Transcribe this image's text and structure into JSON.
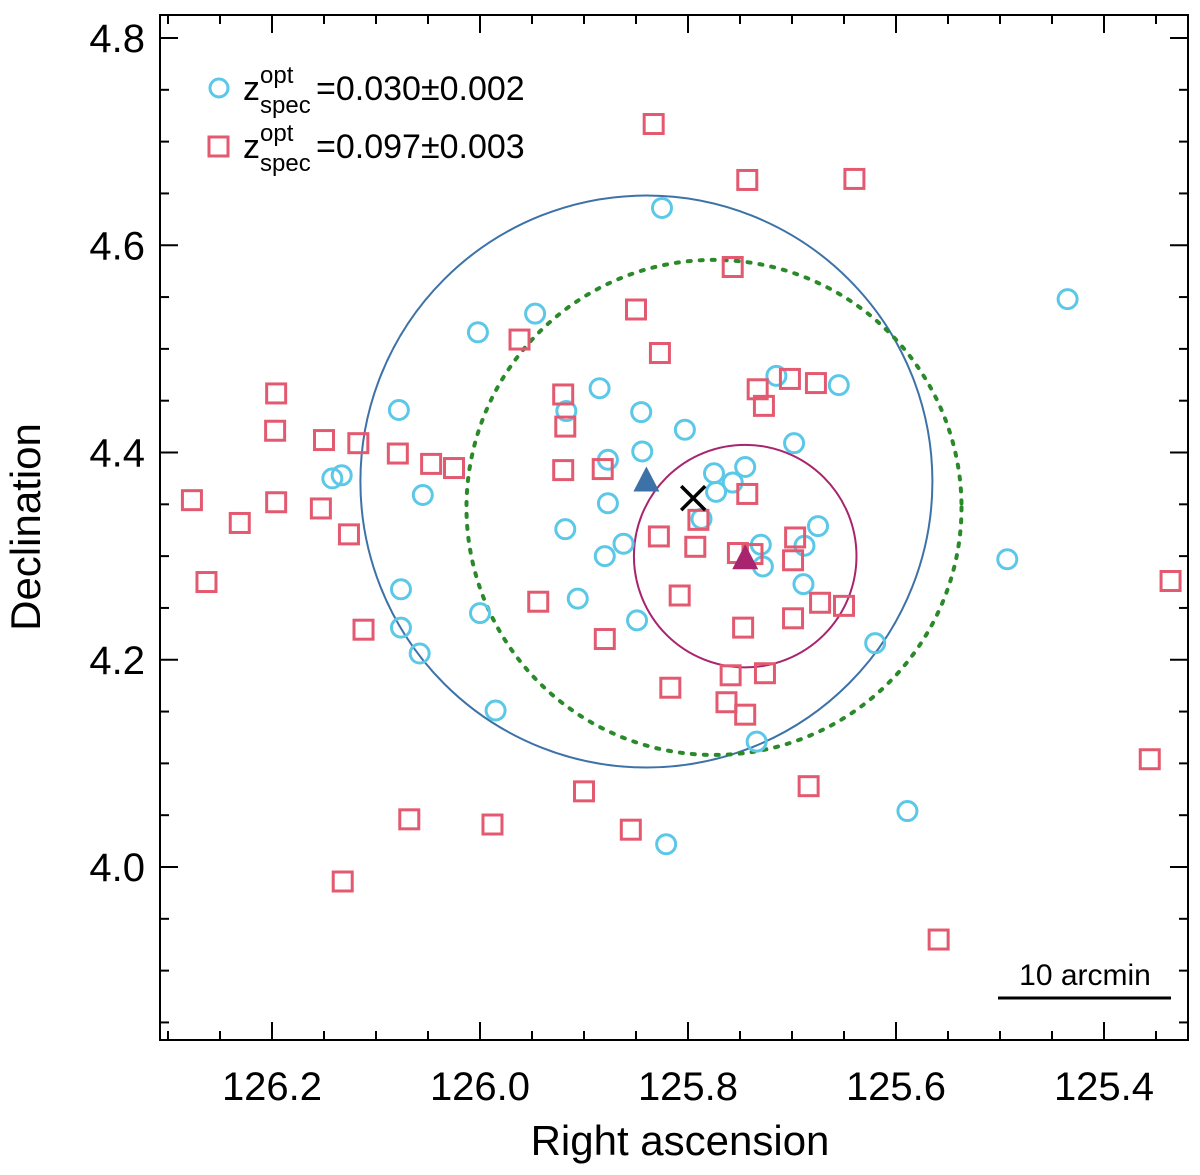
{
  "chart_data": {
    "type": "scatter",
    "xlabel": "Right ascension",
    "ylabel": "Declination",
    "xlim": [
      126.3,
      125.3
    ],
    "ylim": [
      3.86,
      4.83
    ],
    "x_ticks": [
      126.2,
      126.0,
      125.8,
      125.6,
      125.4
    ],
    "y_ticks": [
      4.0,
      4.2,
      4.4,
      4.6,
      4.8
    ],
    "colors": {
      "low_z": "#5bc8e8",
      "high_z": "#e35a70",
      "blue_circle": "#3d72a8",
      "purple_circle": "#a8246e",
      "dotted_circle": "#2a8a2a",
      "center_cross": "#000000"
    },
    "legend": [
      {
        "symbol": "circle",
        "z": "z",
        "sup": "opt",
        "sub": "spec",
        "text": "=0.030±0.002"
      },
      {
        "symbol": "square",
        "z": "z",
        "sup": "opt",
        "sub": "spec",
        "text": "=0.097±0.003"
      }
    ],
    "scale_bar_label": "10 arcmin",
    "series": [
      {
        "name": "z=0.030±0.002",
        "marker": "circle",
        "points": [
          [
            125.825,
            4.636
          ],
          [
            125.435,
            4.548
          ],
          [
            126.002,
            4.516
          ],
          [
            125.947,
            4.534
          ],
          [
            125.715,
            4.474
          ],
          [
            125.655,
            4.465
          ],
          [
            125.885,
            4.462
          ],
          [
            126.078,
            4.441
          ],
          [
            125.917,
            4.44
          ],
          [
            125.845,
            4.439
          ],
          [
            125.803,
            4.422
          ],
          [
            125.698,
            4.409
          ],
          [
            125.844,
            4.401
          ],
          [
            125.877,
            4.393
          ],
          [
            125.745,
            4.386
          ],
          [
            125.775,
            4.38
          ],
          [
            126.133,
            4.378
          ],
          [
            126.142,
            4.375
          ],
          [
            125.757,
            4.371
          ],
          [
            125.773,
            4.362
          ],
          [
            126.055,
            4.359
          ],
          [
            125.877,
            4.351
          ],
          [
            125.787,
            4.336
          ],
          [
            125.918,
            4.326
          ],
          [
            125.675,
            4.329
          ],
          [
            125.862,
            4.312
          ],
          [
            125.73,
            4.311
          ],
          [
            125.688,
            4.31
          ],
          [
            125.88,
            4.3
          ],
          [
            125.728,
            4.29
          ],
          [
            125.689,
            4.273
          ],
          [
            126.076,
            4.268
          ],
          [
            125.906,
            4.259
          ],
          [
            126.0,
            4.245
          ],
          [
            125.849,
            4.238
          ],
          [
            126.076,
            4.231
          ],
          [
            125.62,
            4.216
          ],
          [
            126.058,
            4.206
          ],
          [
            125.985,
            4.151
          ],
          [
            125.734,
            4.121
          ],
          [
            125.493,
            4.297
          ],
          [
            125.589,
            4.054
          ],
          [
            125.821,
            4.022
          ]
        ]
      },
      {
        "name": "z=0.097±0.003",
        "marker": "square",
        "points": [
          [
            125.833,
            4.717
          ],
          [
            125.743,
            4.663
          ],
          [
            125.64,
            4.664
          ],
          [
            125.757,
            4.579
          ],
          [
            125.85,
            4.538
          ],
          [
            125.962,
            4.509
          ],
          [
            125.827,
            4.496
          ],
          [
            125.92,
            4.456
          ],
          [
            125.733,
            4.461
          ],
          [
            125.702,
            4.471
          ],
          [
            125.677,
            4.467
          ],
          [
            125.727,
            4.445
          ],
          [
            125.918,
            4.425
          ],
          [
            126.196,
            4.457
          ],
          [
            126.197,
            4.421
          ],
          [
            126.15,
            4.412
          ],
          [
            126.117,
            4.409
          ],
          [
            126.079,
            4.399
          ],
          [
            126.047,
            4.389
          ],
          [
            126.025,
            4.385
          ],
          [
            125.882,
            4.384
          ],
          [
            125.92,
            4.383
          ],
          [
            125.743,
            4.36
          ],
          [
            126.277,
            4.354
          ],
          [
            126.196,
            4.352
          ],
          [
            126.153,
            4.346
          ],
          [
            126.126,
            4.321
          ],
          [
            126.231,
            4.332
          ],
          [
            125.828,
            4.319
          ],
          [
            125.79,
            4.335
          ],
          [
            125.697,
            4.318
          ],
          [
            125.793,
            4.309
          ],
          [
            125.752,
            4.303
          ],
          [
            125.738,
            4.302
          ],
          [
            125.699,
            4.296
          ],
          [
            126.263,
            4.275
          ],
          [
            125.336,
            4.276
          ],
          [
            125.673,
            4.255
          ],
          [
            125.65,
            4.252
          ],
          [
            125.944,
            4.256
          ],
          [
            125.808,
            4.262
          ],
          [
            125.699,
            4.24
          ],
          [
            126.112,
            4.229
          ],
          [
            125.747,
            4.231
          ],
          [
            125.88,
            4.22
          ],
          [
            125.817,
            4.173
          ],
          [
            125.759,
            4.185
          ],
          [
            125.726,
            4.187
          ],
          [
            125.763,
            4.159
          ],
          [
            125.745,
            4.147
          ],
          [
            125.684,
            4.078
          ],
          [
            125.9,
            4.073
          ],
          [
            126.068,
            4.046
          ],
          [
            125.988,
            4.041
          ],
          [
            125.855,
            4.036
          ],
          [
            126.132,
            3.986
          ],
          [
            125.559,
            3.93
          ],
          [
            125.356,
            4.104
          ]
        ]
      }
    ],
    "annotations": {
      "blue_triangle": [
        125.84,
        4.373
      ],
      "purple_triangle": [
        125.745,
        4.298
      ],
      "cross": [
        125.795,
        4.356
      ],
      "blue_circle": {
        "center": [
          125.84,
          4.372
        ],
        "radius_deg": 0.275
      },
      "purple_circle": {
        "center": [
          125.745,
          4.3
        ],
        "radius_deg": 0.107
      },
      "dotted_circle": {
        "center": [
          125.775,
          4.347
        ],
        "radius_deg": 0.238
      }
    }
  }
}
